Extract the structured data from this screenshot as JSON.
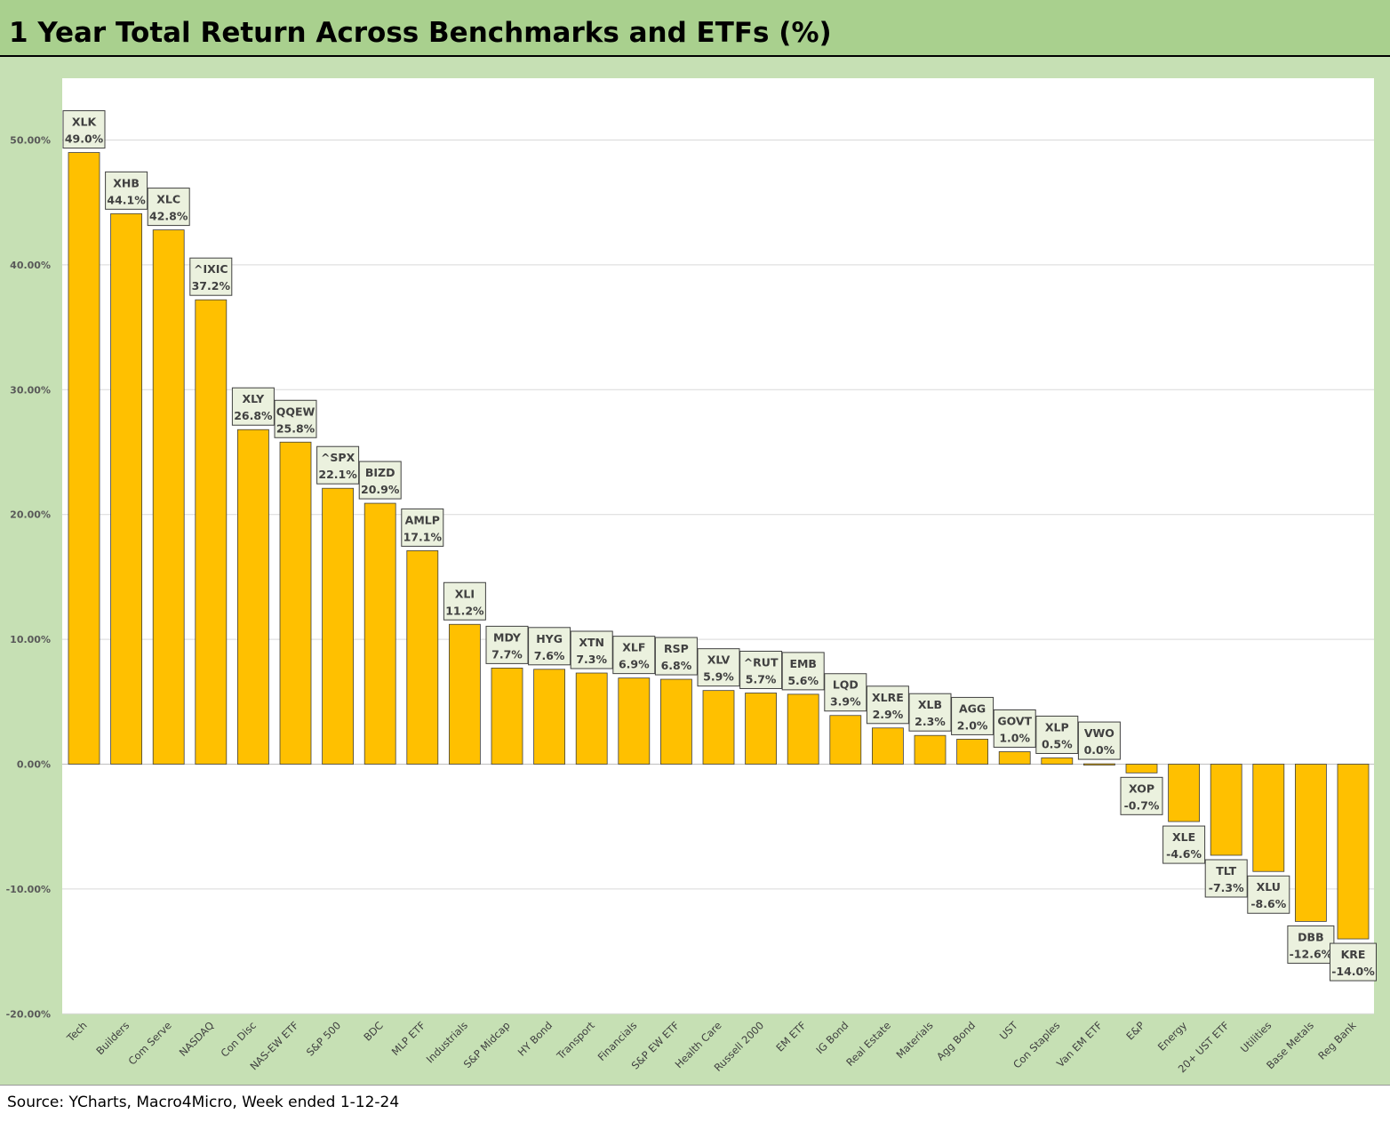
{
  "title": "1 Year Total Return Across Benchmarks and ETFs (%)",
  "source": "Source: YCharts, Macro4Micro, Week ended 1-12-24",
  "colors": {
    "bar": "#ffc000",
    "title_bg": "#a9d08e",
    "chart_bg": "#c6e0b4",
    "plot_bg": "#ffffff",
    "label_bg": "#ebf1de"
  },
  "chart_data": {
    "type": "bar",
    "title": "1 Year Total Return Across Benchmarks and ETFs (%)",
    "xlabel": "",
    "ylabel": "",
    "ylim": [
      -20,
      55
    ],
    "yticks": [
      50,
      40,
      30,
      20,
      10,
      0,
      -10,
      -20
    ],
    "ytick_labels": [
      "50.00%",
      "40.00%",
      "30.00%",
      "20.00%",
      "10.00%",
      "0.00%",
      "-10.00%",
      "-20.00%"
    ],
    "grid": true,
    "legend": "none",
    "categories": [
      "Tech",
      "Builders",
      "Com Serve",
      "NASDAQ",
      "Con Disc",
      "NAS-EW ETF",
      "S&P 500",
      "BDC",
      "MLP ETF",
      "Industrials",
      "S&P Midcap",
      "HY Bond",
      "Transport",
      "Financials",
      "S&P EW ETF",
      "Health Care",
      "Russell 2000",
      "EM ETF",
      "IG Bond",
      "Real Estate",
      "Materials",
      "Agg Bond",
      "UST",
      "Con Staples",
      "Van EM ETF",
      "E&P",
      "Energy",
      "20+ UST ETF",
      "Utilities",
      "Base Metals",
      "Reg Bank"
    ],
    "tickers": [
      "XLK",
      "XHB",
      "XLC",
      "^IXIC",
      "XLY",
      "QQEW",
      "^SPX",
      "BIZD",
      "AMLP",
      "XLI",
      "MDY",
      "HYG",
      "XTN",
      "XLF",
      "RSP",
      "XLV",
      "^RUT",
      "EMB",
      "LQD",
      "XLRE",
      "XLB",
      "AGG",
      "GOVT",
      "XLP",
      "VWO",
      "XOP",
      "XLE",
      "TLT",
      "XLU",
      "DBB",
      "KRE"
    ],
    "value_labels": [
      "49.0%",
      "44.1%",
      "42.8%",
      "37.2%",
      "26.8%",
      "25.8%",
      "22.1%",
      "20.9%",
      "17.1%",
      "11.2%",
      "7.7%",
      "7.6%",
      "7.3%",
      "6.9%",
      "6.8%",
      "5.9%",
      "5.7%",
      "5.6%",
      "3.9%",
      "2.9%",
      "2.3%",
      "2.0%",
      "1.0%",
      "0.5%",
      "0.0%",
      "-0.7%",
      "-4.6%",
      "-7.3%",
      "-8.6%",
      "-12.6%",
      "-14.0%"
    ],
    "values": [
      49.0,
      44.1,
      42.8,
      37.2,
      26.8,
      25.8,
      22.1,
      20.9,
      17.1,
      11.2,
      7.7,
      7.6,
      7.3,
      6.9,
      6.8,
      5.9,
      5.7,
      5.6,
      3.9,
      2.9,
      2.3,
      2.0,
      1.0,
      0.5,
      0.03,
      -0.7,
      -4.6,
      -7.3,
      -8.6,
      -12.6,
      -14.0
    ]
  }
}
